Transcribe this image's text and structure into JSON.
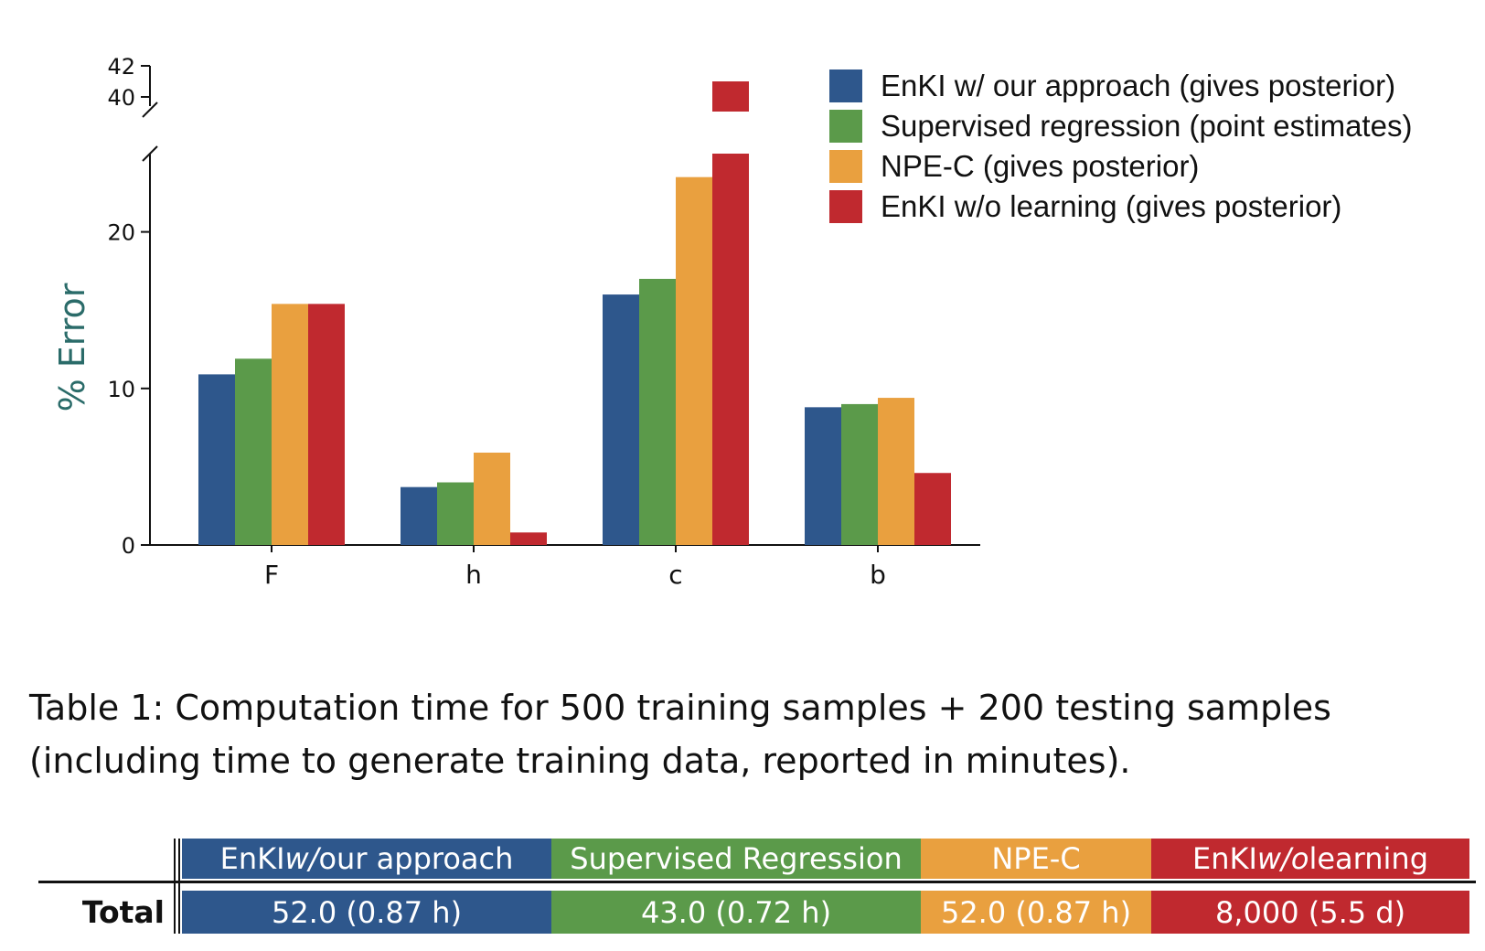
{
  "chart_data": {
    "type": "bar",
    "categories": [
      "F",
      "h",
      "c",
      "b"
    ],
    "series": [
      {
        "name": "EnKI w/ our approach (gives posterior)",
        "color": "#2e578c",
        "values": [
          10.9,
          3.7,
          16.0,
          8.8
        ]
      },
      {
        "name": "Supervised regression (point estimates)",
        "color": "#5b9a4a",
        "values": [
          11.9,
          4.0,
          17.0,
          9.0
        ]
      },
      {
        "name": "NPE-C (gives posterior)",
        "color": "#e9a03f",
        "values": [
          15.4,
          5.9,
          23.5,
          9.4
        ]
      },
      {
        "name": "EnKI w/o learning (gives posterior)",
        "color": "#c0292f",
        "values": [
          15.4,
          0.8,
          41.0,
          4.6
        ]
      }
    ],
    "ylabel": "% Error",
    "ylabel_color": "#2a6b69",
    "ylim_lower": [
      0,
      25
    ],
    "ylim_upper": [
      40,
      42
    ],
    "yticks_lower": [
      0,
      10,
      20
    ],
    "yticks_upper": [
      40,
      42
    ],
    "broken_axis": true,
    "legend_position": "top-right",
    "grid": false
  },
  "caption": {
    "line1": "Table 1: Computation time for 500 training samples + 200 testing samples",
    "line2": "(including time to generate training data, reported in minutes)."
  },
  "table": {
    "row_label": "Total",
    "columns": [
      {
        "pre": "EnKI ",
        "em": "w/",
        "post": " our approach",
        "value": "52.0 (0.87 h)",
        "color": "#2e578c"
      },
      {
        "pre": "Supervised Regression",
        "em": "",
        "post": "",
        "value": "43.0 (0.72 h)",
        "color": "#5b9a4a"
      },
      {
        "pre": "NPE-C",
        "em": "",
        "post": "",
        "value": "52.0 (0.87 h)",
        "color": "#e9a03f"
      },
      {
        "pre": "EnKI ",
        "em": "w/o",
        "post": " learning",
        "value": "8,000 (5.5 d)",
        "color": "#c0292f"
      }
    ]
  }
}
